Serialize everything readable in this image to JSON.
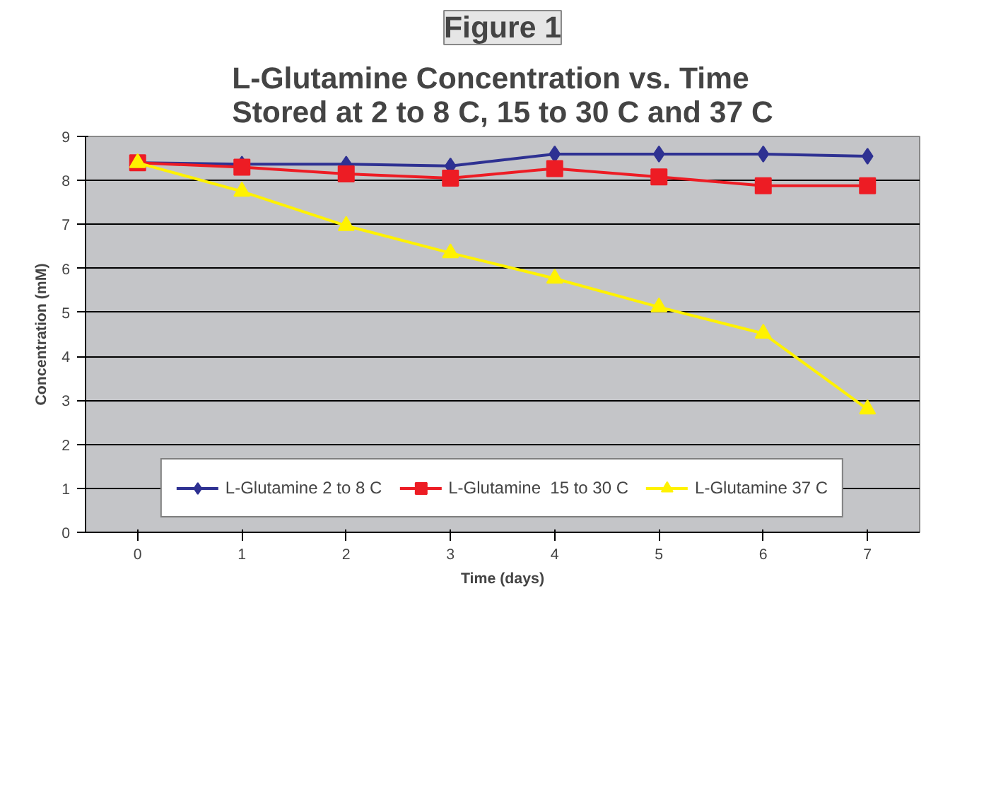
{
  "chart_data": {
    "type": "line",
    "title": "L-Glutamine Concentration vs. Time\nStored at 2 to 8 C, 15 to 30 C and 37 C",
    "annotations": [
      "Figure 1"
    ],
    "xlabel": "Time (days)",
    "ylabel": "Concentration (mM)",
    "categories": [
      "0",
      "1",
      "2",
      "3",
      "4",
      "5",
      "6",
      "7"
    ],
    "series": [
      {
        "name": "L-Glutamine 2 to 8 C",
        "color": "#2e3192",
        "marker": "diamond",
        "values": [
          8.4,
          8.37,
          8.37,
          8.33,
          8.6,
          8.6,
          8.6,
          8.55
        ]
      },
      {
        "name": "L-Glutamine  15 to 30 C",
        "color": "#ed1c24",
        "marker": "square",
        "values": [
          8.4,
          8.3,
          8.15,
          8.05,
          8.27,
          8.08,
          7.88,
          7.88
        ]
      },
      {
        "name": "L-Glutamine 37 C",
        "color": "#fff200",
        "marker": "triangle",
        "values": [
          8.4,
          7.75,
          6.97,
          6.35,
          5.77,
          5.12,
          4.52,
          2.8
        ]
      }
    ],
    "ylim": [
      0,
      9
    ],
    "yticks": [
      0,
      1,
      2,
      3,
      4,
      5,
      6,
      7,
      8,
      9
    ],
    "grid": "y",
    "legend": "bottom",
    "line_style": "solid"
  }
}
